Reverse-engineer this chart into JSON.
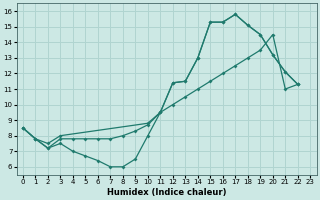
{
  "xlabel": "Humidex (Indice chaleur)",
  "xlim": [
    -0.5,
    23.5
  ],
  "ylim": [
    5.5,
    16.5
  ],
  "xticks": [
    0,
    1,
    2,
    3,
    4,
    5,
    6,
    7,
    8,
    9,
    10,
    11,
    12,
    13,
    14,
    15,
    16,
    17,
    18,
    19,
    20,
    21,
    22,
    23
  ],
  "yticks": [
    6,
    7,
    8,
    9,
    10,
    11,
    12,
    13,
    14,
    15,
    16
  ],
  "line_color": "#1f7a6d",
  "bg_color": "#cce8e4",
  "grid_color": "#b0d4d0",
  "line1_x": [
    0,
    1,
    2,
    3,
    4,
    5,
    6,
    7,
    8,
    9,
    10,
    11,
    12,
    13,
    14,
    15,
    16,
    17,
    18,
    19,
    20,
    21,
    22
  ],
  "line1_y": [
    8.5,
    7.8,
    7.2,
    7.8,
    7.8,
    7.8,
    7.8,
    7.8,
    8.0,
    8.3,
    8.7,
    9.5,
    11.4,
    11.5,
    13.0,
    15.3,
    15.3,
    15.8,
    15.1,
    14.5,
    13.2,
    12.1,
    11.3
  ],
  "line2_x": [
    0,
    1,
    2,
    3,
    4,
    5,
    6,
    7,
    8,
    9,
    10,
    11,
    12,
    13,
    14,
    15,
    16,
    17,
    18,
    19,
    20,
    21,
    22
  ],
  "line2_y": [
    8.5,
    7.8,
    7.2,
    7.5,
    7.0,
    6.7,
    6.4,
    6.0,
    6.0,
    6.5,
    8.0,
    9.5,
    11.4,
    11.5,
    13.0,
    15.3,
    15.3,
    15.8,
    15.1,
    14.5,
    13.2,
    12.1,
    11.3
  ],
  "line3_x": [
    0,
    1,
    2,
    3,
    10,
    11,
    12,
    13,
    14,
    15,
    16,
    17,
    18,
    19,
    20,
    21,
    22
  ],
  "line3_y": [
    8.5,
    7.8,
    7.5,
    8.0,
    8.8,
    9.5,
    10.0,
    10.5,
    11.0,
    11.5,
    12.0,
    12.5,
    13.0,
    13.5,
    14.5,
    11.0,
    11.3
  ]
}
